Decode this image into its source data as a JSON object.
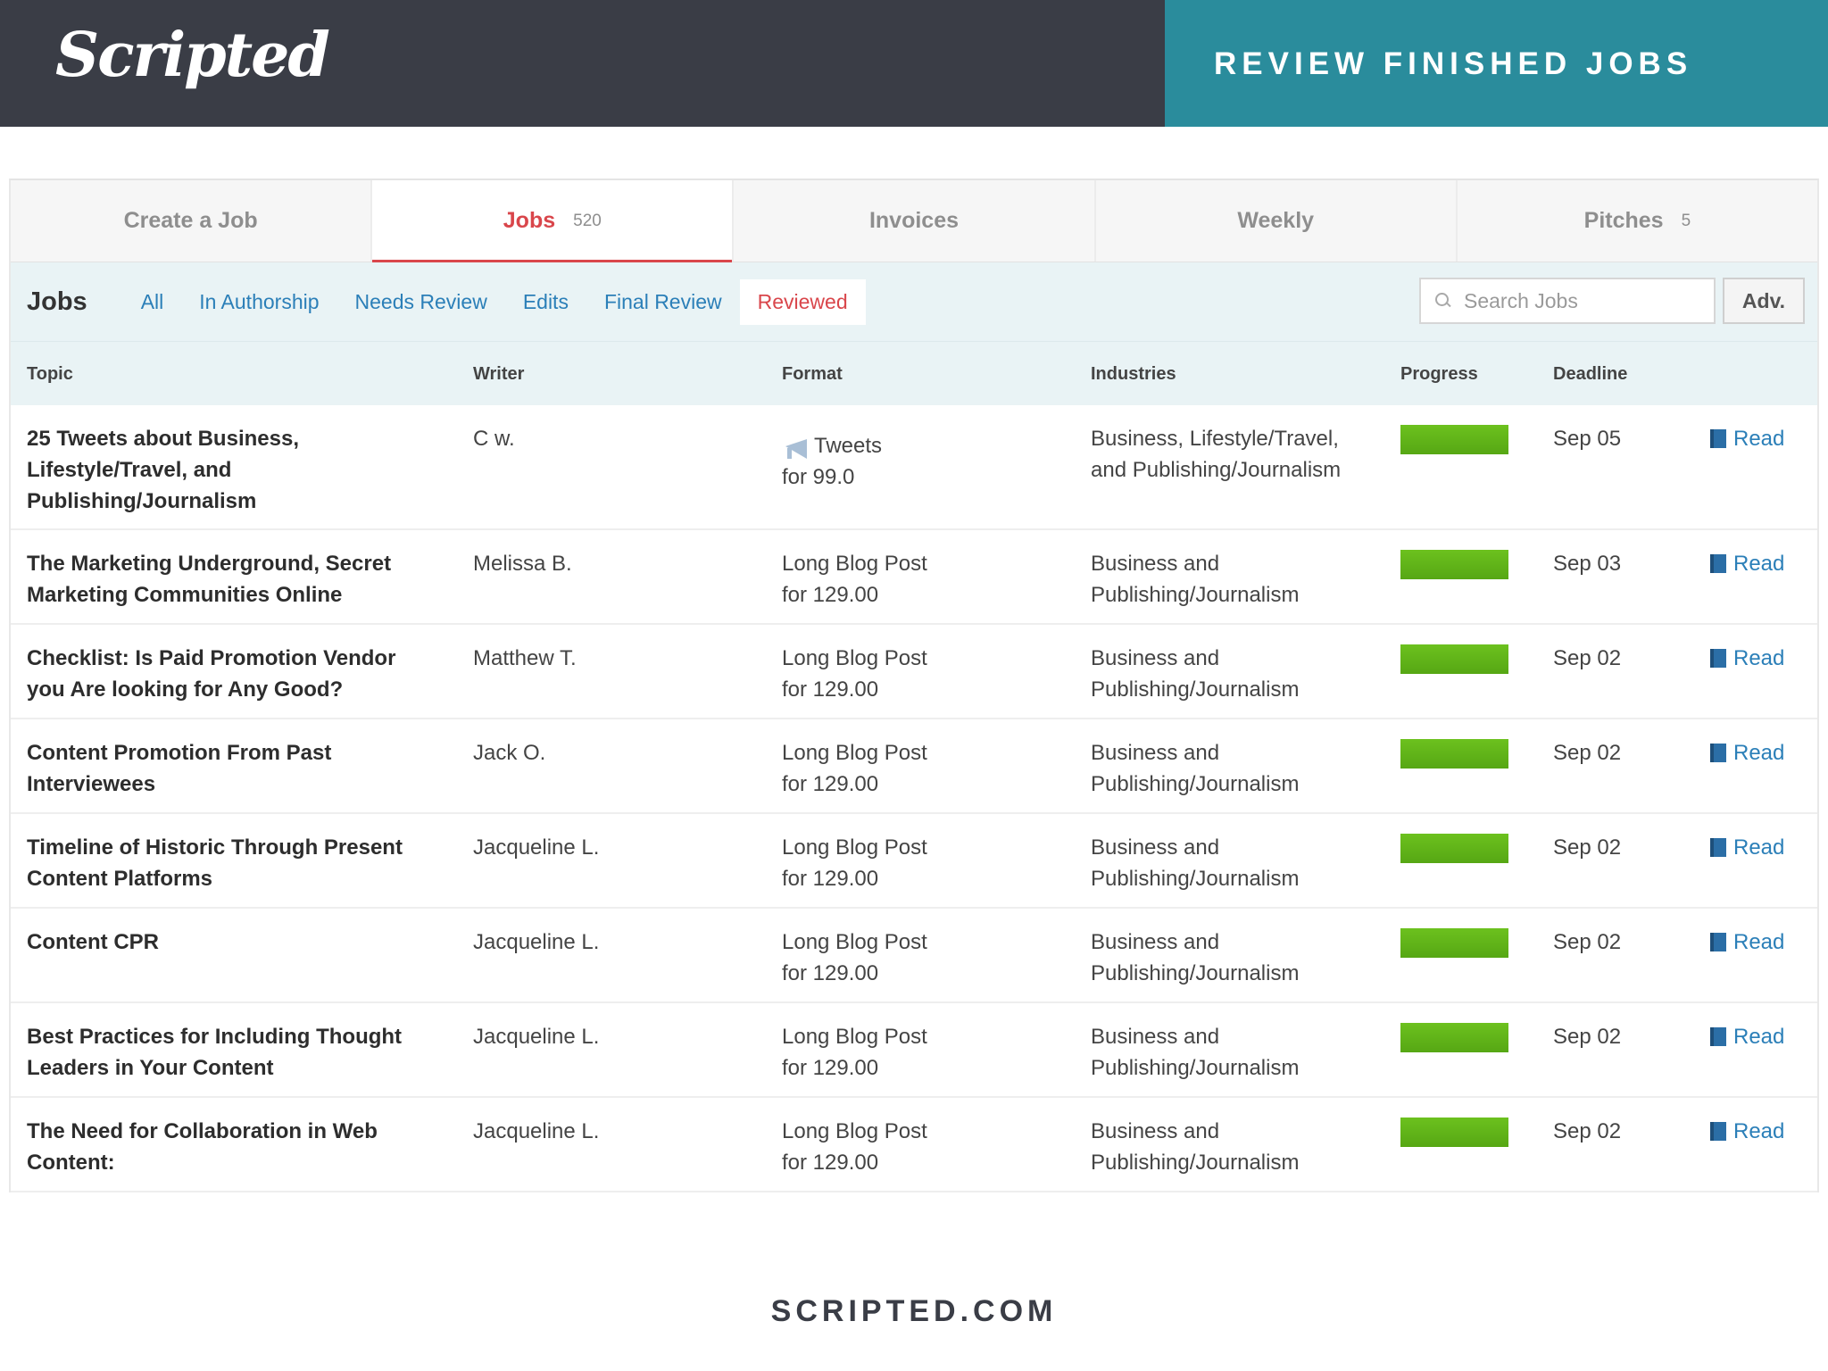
{
  "banner": {
    "logo": "Scripted",
    "title": "REVIEW FINISHED JOBS"
  },
  "tabs": [
    {
      "label": "Create a Job",
      "count": ""
    },
    {
      "label": "Jobs",
      "count": "520"
    },
    {
      "label": "Invoices",
      "count": ""
    },
    {
      "label": "Weekly",
      "count": ""
    },
    {
      "label": "Pitches",
      "count": "5"
    }
  ],
  "subnav": {
    "title": "Jobs",
    "filters": [
      "All",
      "In Authorship",
      "Needs Review",
      "Edits",
      "Final Review",
      "Reviewed"
    ],
    "active_filter": "Reviewed",
    "search_placeholder": "Search Jobs",
    "adv_label": "Adv."
  },
  "columns": {
    "topic": "Topic",
    "writer": "Writer",
    "format": "Format",
    "industries": "Industries",
    "progress": "Progress",
    "deadline": "Deadline"
  },
  "rows": [
    {
      "topic": [
        "25 Tweets about Business,",
        "Lifestyle/Travel, and",
        "Publishing/Journalism"
      ],
      "writer": "C w.",
      "format": "Tweets",
      "price": "for 99.0",
      "industries": [
        "Business, Lifestyle/Travel,",
        "and Publishing/Journalism"
      ],
      "progress": 1.0,
      "deadline": "Sep 05",
      "action": "Read"
    },
    {
      "topic": [
        "The Marketing Underground, Secret",
        "Marketing Communities Online"
      ],
      "writer": "Melissa B.",
      "format": "Long Blog Post",
      "price": "for 129.00",
      "industries": [
        "Business and",
        "Publishing/Journalism"
      ],
      "progress": 1.0,
      "deadline": "Sep 03",
      "action": "Read"
    },
    {
      "topic": [
        "Checklist: Is Paid Promotion Vendor",
        "you Are looking for Any Good?"
      ],
      "writer": "Matthew T.",
      "format": "Long Blog Post",
      "price": "for 129.00",
      "industries": [
        "Business and",
        "Publishing/Journalism"
      ],
      "progress": 1.0,
      "deadline": "Sep 02",
      "action": "Read"
    },
    {
      "topic": [
        "Content Promotion From Past",
        "Interviewees"
      ],
      "writer": "Jack O.",
      "format": "Long Blog Post",
      "price": "for 129.00",
      "industries": [
        "Business and",
        "Publishing/Journalism"
      ],
      "progress": 1.0,
      "deadline": "Sep 02",
      "action": "Read"
    },
    {
      "topic": [
        "Timeline of Historic Through Present",
        "Content Platforms"
      ],
      "writer": "Jacqueline L.",
      "format": "Long Blog Post",
      "price": "for 129.00",
      "industries": [
        "Business and",
        "Publishing/Journalism"
      ],
      "progress": 1.0,
      "deadline": "Sep 02",
      "action": "Read"
    },
    {
      "topic": [
        "Content CPR"
      ],
      "writer": "Jacqueline L.",
      "format": "Long Blog Post",
      "price": "for 129.00",
      "industries": [
        "Business and",
        "Publishing/Journalism"
      ],
      "progress": 1.0,
      "deadline": "Sep 02",
      "action": "Read"
    },
    {
      "topic": [
        "Best Practices for Including Thought",
        "Leaders in Your Content"
      ],
      "writer": "Jacqueline L.",
      "format": "Long Blog Post",
      "price": "for 129.00",
      "industries": [
        "Business and",
        "Publishing/Journalism"
      ],
      "progress": 1.0,
      "deadline": "Sep 02",
      "action": "Read"
    },
    {
      "topic": [
        "The Need for Collaboration in Web",
        "Content:"
      ],
      "writer": "Jacqueline L.",
      "format": "Long Blog Post",
      "price": "for 129.00",
      "industries": [
        "Business and",
        "Publishing/Journalism"
      ],
      "progress": 1.0,
      "deadline": "Sep 02",
      "action": "Read"
    }
  ],
  "footer": "SCRIPTED.COM",
  "colors": {
    "banner_dark": "#3a3d46",
    "banner_teal": "#2a8c9c",
    "active_red": "#d9464b",
    "link_blue": "#2b7fb8",
    "progress_green": "#5cb317",
    "subnav_bg": "#e9f3f5"
  }
}
